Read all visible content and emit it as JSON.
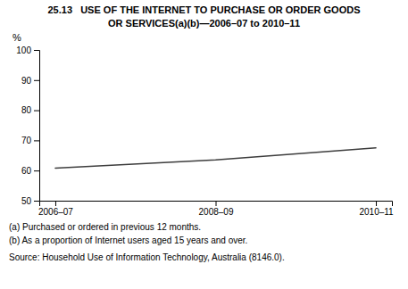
{
  "chart_data": {
    "type": "line",
    "title": "25.13   USE OF THE INTERNET TO PURCHASE OR ORDER GOODS",
    "subtitle": "OR SERVICES(a)(b)—2006–07 to 2010–11",
    "ylabel": "%",
    "categories": [
      "2006–07",
      "2008–09",
      "2010–11"
    ],
    "values": [
      60.8,
      63.5,
      67.5
    ],
    "color": "#3d3d3d",
    "ylim": [
      50,
      100
    ],
    "yticks": [
      50,
      60,
      70,
      80,
      90,
      100
    ],
    "grid": false,
    "annotations": [
      "(a) Purchased or ordered in previous 12 months.",
      "(b) As a proportion of Internet users aged 15 years and over.",
      "Source: Household Use of Information Technology, Australia (8146.0)."
    ]
  }
}
